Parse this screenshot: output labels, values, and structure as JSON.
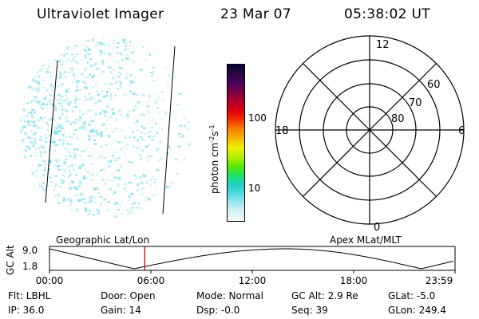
{
  "header": {
    "instrument": "Ultraviolet Imager",
    "date": "23 Mar 07",
    "time": "05:38:02 UT"
  },
  "colorbar": {
    "unit_label": "photon cm",
    "unit_exp_a": "-2",
    "unit_mid": "s",
    "unit_exp_b": "-1",
    "tick_100": "100",
    "tick_10": "10",
    "colors": [
      "#000033",
      "#2a0840",
      "#4b0060",
      "#7a0040",
      "#b0002a",
      "#dd0010",
      "#f03000",
      "#f58000",
      "#f7b200",
      "#eef000",
      "#b8f000",
      "#60e800",
      "#20e060",
      "#20d0c0",
      "#50d8e0",
      "#9ee8ee",
      "#d6f2f4",
      "#f4fafa"
    ]
  },
  "polar": {
    "label_top": "12",
    "label_left": "18",
    "label_right": "6",
    "label_bottom": "0",
    "ring_60": "60",
    "ring_70": "70",
    "ring_80": "80"
  },
  "timeline": {
    "left_label": "Geographic Lat/Lon",
    "right_label": "Apex MLat/MLT",
    "y_axis_label": "GC Alt",
    "y_top": "9.0",
    "y_bottom": "1.8",
    "ticks": [
      "00:00",
      "06:00",
      "12:00",
      "18:00",
      "23:59"
    ],
    "marker_time_hours": 5.634,
    "marker_color": "#cc0000"
  },
  "footer": {
    "flt": "Flt: LBHL",
    "ip": "IP: 36.0",
    "door": "Door: Open",
    "gain": "Gain: 14",
    "mode": "Mode: Normal",
    "dsp": "Dsp:   -0.0",
    "gc_alt": "GC Alt: 2.9 Re",
    "seq": "Seq: 39",
    "glat": "GLat:  -5.0",
    "glon": "GLon: 249.4"
  },
  "image_panel": {
    "dot_color": "#7fdfe6"
  }
}
